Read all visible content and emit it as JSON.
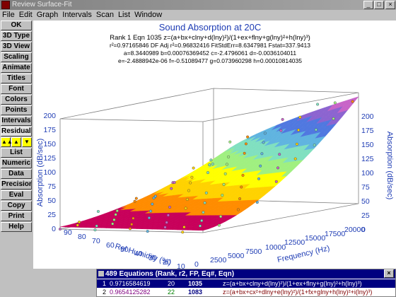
{
  "window": {
    "title": "Review Surface-Fit"
  },
  "menu": [
    "File",
    "Edit",
    "Graph",
    "Intervals",
    "Scan",
    "List",
    "Window"
  ],
  "toolbar": {
    "buttons": [
      "OK",
      "3D Type",
      "3D View",
      "Scaling",
      "Animate",
      "Titles",
      "Font",
      "Colors",
      "Points",
      "Intervals",
      "Residuals",
      "List",
      "Numeric",
      "Data",
      "Precision",
      "Eval",
      "Copy",
      "Print",
      "Help"
    ]
  },
  "graph": {
    "title": "Sound Absorption at 20C",
    "info": [
      "Rank 1  Eqn 1035  z=(a+bx+clny+d(lny)²)/(1+ex+flny+g(lny)²+h(lny)³)",
      "r²=0.97165846  DF Adj r²=0.96832416  FitStdErr=8.6347981  Fstat=337.9413",
      "a=8.3440989 b=0.00076369452 c=-2.4796061 d=-0.0036104011",
      "e=-2.4888942e-06 f=-0.51089477 g=0.073960298 h=0.00010814035"
    ],
    "z_label": "Absorption (dB/sec)",
    "x_label": "Rel Humidity (%)",
    "y_label": "Frequency (Hz)",
    "z_ticks": [
      "0",
      "25",
      "50",
      "75",
      "100",
      "125",
      "150",
      "175",
      "200"
    ],
    "x_ticks": [
      "90",
      "80",
      "70",
      "60",
      "50",
      "40",
      "30",
      "20",
      "10"
    ],
    "y_ticks": [
      "0",
      "2500",
      "5000",
      "7500",
      "10000",
      "12500",
      "15000",
      "17500",
      "20000"
    ],
    "colors": [
      "#c8005a",
      "#ff8c00",
      "#ffd200",
      "#ffff00",
      "#a0f080",
      "#80e0c0",
      "#60b4e0",
      "#5078e0",
      "#8c64d0",
      "#c864c8",
      "#e678c8"
    ]
  },
  "equations": {
    "title": "489 Equations  (Rank, r2, FP, Eq#, Eqn)",
    "rows": [
      {
        "rank": "1",
        "r2": "0.9716584619",
        "fp": "20",
        "eq": "1035",
        "formula": "z=(a+bx+clny+d(lny)²)/(1+ex+flny+g(lny)²+h(lny)³)"
      },
      {
        "rank": "2",
        "r2": "0.9654125282",
        "fp": "22",
        "eq": "1083",
        "formula": "z=(a+bx+cx²+dlny+e(lny)²)/(1+fx+glny+h(lny)²+i(lny)³)"
      }
    ]
  }
}
